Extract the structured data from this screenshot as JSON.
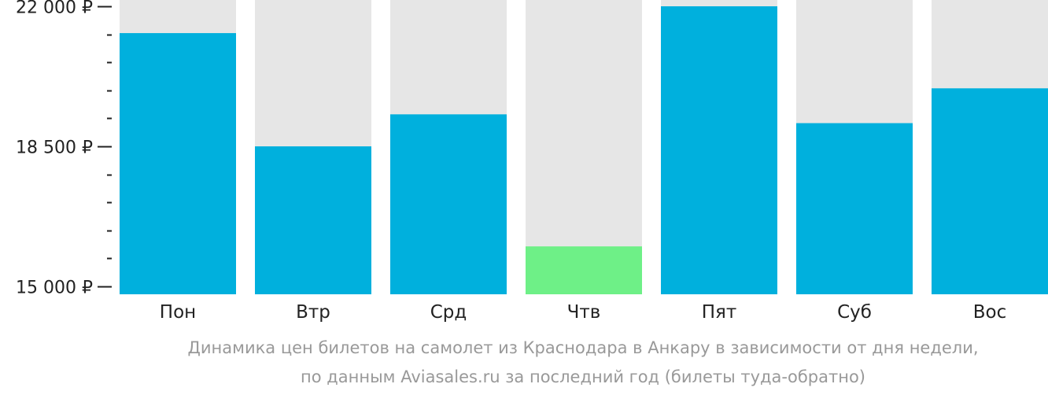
{
  "chart_data": {
    "type": "bar",
    "categories": [
      "Пон",
      "Втр",
      "Срд",
      "Чтв",
      "Пят",
      "Суб",
      "Вос"
    ],
    "values": [
      21330,
      18500,
      19300,
      16000,
      22000,
      19080,
      19950
    ],
    "ylim": [
      15000,
      22000
    ],
    "yticks": [
      {
        "value": 22000,
        "label": "22 000 ₽"
      },
      {
        "value": 18500,
        "label": "18 500 ₽"
      },
      {
        "value": 15000,
        "label": "15 000 ₽"
      }
    ],
    "minor_tick_step": 700,
    "highlight_index": 3,
    "title": "",
    "xlabel": "",
    "ylabel": "",
    "grid": false,
    "colors": {
      "bar": "#00b0dd",
      "bar_highlight": "#6ef087",
      "background_column": "#e6e6e6",
      "axis": "#222222",
      "caption": "#999999"
    }
  },
  "caption": {
    "line1": "Динамика цен билетов на самолет из Краснодара в Анкару в зависимости от дня недели,",
    "line2": "по данным Aviasales.ru за последний год (билеты туда-обратно)"
  }
}
